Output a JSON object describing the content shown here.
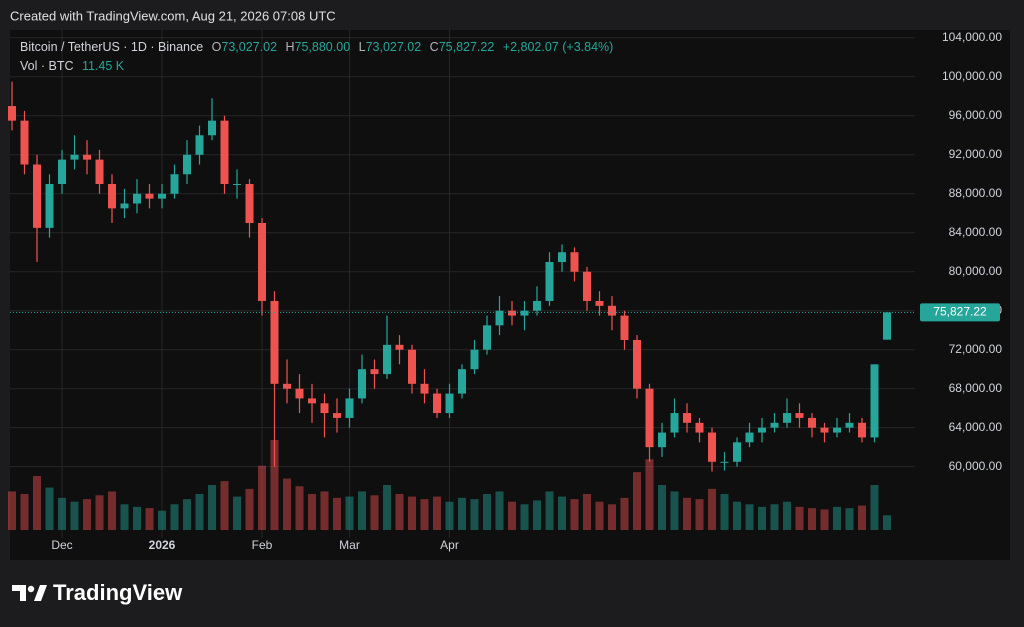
{
  "created_note": "Created with TradingView.com, Aug 21, 2026 07:08 UTC",
  "brand": "TradingView",
  "legend": {
    "symbol": "Bitcoin / TetherUS · 1D · Binance",
    "items": [
      {
        "key": "O",
        "value": "73,027.02"
      },
      {
        "key": "H",
        "value": "75,880.00"
      },
      {
        "key": "L",
        "value": "73,027.02"
      },
      {
        "key": "C",
        "value": "75,827.22"
      }
    ],
    "change": "+2,802.07 (+3.84%)",
    "volume_name": "Vol · BTC",
    "volume_value": "11.45 K"
  },
  "chart_data": {
    "type": "candlestick",
    "up_color": "#26a69a",
    "down_color": "#ef5350",
    "grid": true,
    "last_price_label": "75,827.22",
    "ylim": [
      53400,
      104800
    ],
    "yticks": [
      {
        "value": 60000,
        "label": "60,000.00"
      },
      {
        "value": 64000,
        "label": "64,000.00"
      },
      {
        "value": 68000,
        "label": "68,000.00"
      },
      {
        "value": 72000,
        "label": "72,000.00"
      },
      {
        "value": 76000,
        "label": "76,000.00"
      },
      {
        "value": 80000,
        "label": "80,000.00"
      },
      {
        "value": 84000,
        "label": "84,000.00"
      },
      {
        "value": 88000,
        "label": "88,000.00"
      },
      {
        "value": 92000,
        "label": "92,000.00"
      },
      {
        "value": 96000,
        "label": "96,000.00"
      },
      {
        "value": 100000,
        "label": "100,000.00"
      },
      {
        "value": 104000,
        "label": "104,000.00"
      }
    ],
    "categories": [
      null,
      null,
      null,
      null,
      "Dec",
      null,
      null,
      null,
      null,
      null,
      null,
      null,
      "2026",
      null,
      null,
      null,
      null,
      null,
      null,
      null,
      "Feb",
      null,
      null,
      null,
      null,
      null,
      null,
      "Mar",
      null,
      null,
      null,
      null,
      null,
      null,
      null,
      "Apr",
      null,
      null,
      null,
      null,
      null,
      null,
      null,
      null,
      null,
      null,
      null,
      null,
      null,
      null,
      null,
      null,
      null,
      null,
      null,
      null,
      null,
      null,
      null,
      null,
      null,
      null,
      null,
      null,
      null,
      null,
      null,
      null,
      null,
      null,
      null
    ],
    "ohlc": [
      [
        97000,
        99500,
        94500,
        95500
      ],
      [
        95500,
        96500,
        90000,
        91000
      ],
      [
        91000,
        92000,
        81000,
        84500
      ],
      [
        84500,
        90000,
        83500,
        89000
      ],
      [
        89000,
        92500,
        88000,
        91500
      ],
      [
        91500,
        94000,
        90500,
        92000
      ],
      [
        92000,
        93500,
        90000,
        91500
      ],
      [
        91500,
        92500,
        88000,
        89000
      ],
      [
        89000,
        90000,
        85000,
        86500
      ],
      [
        86500,
        88500,
        85500,
        87000
      ],
      [
        87000,
        89500,
        86000,
        88000
      ],
      [
        88000,
        89000,
        86500,
        87500
      ],
      [
        87500,
        89000,
        86500,
        88000
      ],
      [
        88000,
        91000,
        87500,
        90000
      ],
      [
        90000,
        93500,
        89000,
        92000
      ],
      [
        92000,
        95000,
        91000,
        94000
      ],
      [
        94000,
        97800,
        93500,
        95500
      ],
      [
        95500,
        96000,
        88000,
        89000
      ],
      [
        89000,
        90500,
        87500,
        89000
      ],
      [
        89000,
        89500,
        83500,
        85000
      ],
      [
        85000,
        85500,
        75500,
        77000
      ],
      [
        77000,
        78000,
        60000,
        68500
      ],
      [
        68500,
        71000,
        66500,
        68000
      ],
      [
        68000,
        69500,
        65500,
        67000
      ],
      [
        67000,
        68500,
        64500,
        66500
      ],
      [
        66500,
        67500,
        63000,
        65500
      ],
      [
        65500,
        67000,
        63500,
        65000
      ],
      [
        65000,
        68000,
        64000,
        67000
      ],
      [
        67000,
        71500,
        66500,
        70000
      ],
      [
        70000,
        71000,
        68000,
        69500
      ],
      [
        69500,
        75500,
        69000,
        72500
      ],
      [
        72500,
        73500,
        70500,
        72000
      ],
      [
        72000,
        72500,
        67500,
        68500
      ],
      [
        68500,
        70000,
        66500,
        67500
      ],
      [
        67500,
        68000,
        65000,
        65500
      ],
      [
        65500,
        68500,
        65000,
        67500
      ],
      [
        67500,
        70500,
        67000,
        70000
      ],
      [
        70000,
        73000,
        69500,
        72000
      ],
      [
        72000,
        75500,
        71500,
        74500
      ],
      [
        74500,
        77500,
        73500,
        76000
      ],
      [
        76000,
        77000,
        74500,
        75500
      ],
      [
        75500,
        77000,
        74000,
        76000
      ],
      [
        76000,
        78500,
        75500,
        77000
      ],
      [
        77000,
        82000,
        76500,
        81000
      ],
      [
        81000,
        82800,
        80000,
        82000
      ],
      [
        82000,
        82500,
        79000,
        80000
      ],
      [
        80000,
        80500,
        76000,
        77000
      ],
      [
        77000,
        78000,
        75500,
        76500
      ],
      [
        76500,
        77500,
        74000,
        75500
      ],
      [
        75500,
        76000,
        72000,
        73000
      ],
      [
        73000,
        73500,
        67000,
        68000
      ],
      [
        68000,
        68500,
        60500,
        62000
      ],
      [
        62000,
        64500,
        61000,
        63500
      ],
      [
        63500,
        67000,
        63000,
        65500
      ],
      [
        65500,
        66500,
        63500,
        64500
      ],
      [
        64500,
        65000,
        62500,
        63500
      ],
      [
        63500,
        64000,
        59500,
        60500
      ],
      [
        60500,
        61500,
        59600,
        60500
      ],
      [
        60500,
        63000,
        60000,
        62500
      ],
      [
        62500,
        64500,
        62000,
        63500
      ],
      [
        63500,
        65000,
        62500,
        64000
      ],
      [
        64000,
        65500,
        63500,
        64500
      ],
      [
        64500,
        67000,
        64000,
        65500
      ],
      [
        65500,
        66500,
        64000,
        65000
      ],
      [
        65000,
        65500,
        63000,
        64000
      ],
      [
        64000,
        64500,
        62500,
        63500
      ],
      [
        63500,
        65000,
        63000,
        64000
      ],
      [
        64000,
        65500,
        63500,
        64500
      ],
      [
        64500,
        65000,
        62500,
        63000
      ],
      [
        63000,
        70500,
        62500,
        70500
      ],
      [
        73027.02,
        75880,
        73027.02,
        75827.22
      ]
    ],
    "volume": [
      30,
      28,
      42,
      33,
      25,
      22,
      24,
      27,
      30,
      20,
      18,
      17,
      15,
      20,
      24,
      28,
      35,
      38,
      26,
      32,
      50,
      70,
      40,
      34,
      28,
      30,
      25,
      26,
      30,
      27,
      35,
      28,
      26,
      24,
      26,
      22,
      25,
      24,
      28,
      30,
      22,
      20,
      23,
      30,
      26,
      24,
      28,
      22,
      20,
      25,
      45,
      55,
      35,
      30,
      25,
      24,
      32,
      28,
      22,
      20,
      18,
      20,
      22,
      18,
      17,
      16,
      18,
      17,
      19,
      35,
      11.45
    ]
  }
}
